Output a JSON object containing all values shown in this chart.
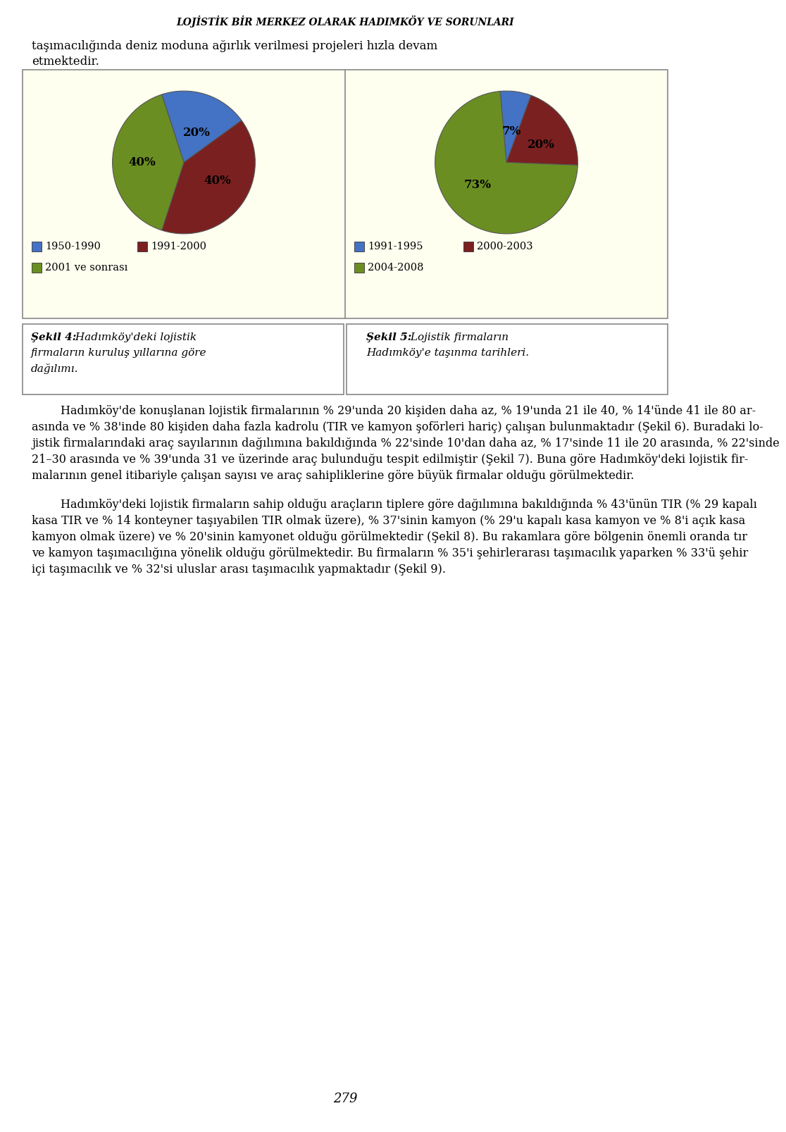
{
  "page_title": "LOJİSTİK BİR MERKEZ OLARAK HADIMKÖY VE SORUNLARI",
  "page_number": "279",
  "chart_bg": "#FFFFF0",
  "pie1": {
    "values": [
      20,
      40,
      40
    ],
    "pct_labels": [
      "20%",
      "40%",
      "40%"
    ],
    "colors": [
      "#4472C4",
      "#7B2020",
      "#6B8E23"
    ],
    "legend": [
      "1950-1990",
      "1991-2000",
      "2001 ve sonrası"
    ],
    "legend_colors": [
      "#4472C4",
      "#7B2020",
      "#6B8E23"
    ],
    "startangle": 108
  },
  "pie2": {
    "values": [
      7,
      20,
      73
    ],
    "pct_labels": [
      "7%",
      "20%",
      "73%"
    ],
    "colors": [
      "#4472C4",
      "#7B2020",
      "#6B8E23"
    ],
    "legend": [
      "1991-1995",
      "2000-2003",
      "2004-2008"
    ],
    "legend_colors": [
      "#4472C4",
      "#7B2020",
      "#6B8E23"
    ],
    "startangle": 95
  },
  "caption1_bold": "Şekil 4:",
  "caption1_rest": " Hadımköy’deki lojistik\nfirmaların kuruluş yıllarına göre\ndağılımı.",
  "caption2_bold": "Şekil 5:",
  "caption2_rest": " Lojistik firmaların\nHadımköy’e taşınma tarihleri.",
  "body1_lines": [
    "        Hadımköy’de konuşlanan lojistik firmalarının % 29’unda 20 kişiden daha az, % 19’unda 21 ile 40, % 14’ünde 41 ile 80 ar-",
    "asında ve % 38’inde 80 kişiden daha fazla kadrolu (TIR ve kamyon şoförleri hariç) çalışan bulunmaktadır (Şekil 6). Buradaki lo-",
    "jistik firmalarındaki araç sayılarının dağılımına bakıldığında % 22’sinde 10’dan daha az, % 17’sinde 11 ile 20 arasında, % 22’sinde",
    "21–30 arasında ve % 39’unda 31 ve üzerinde araç bulunduğu tespit edilmiştir (Şekil 7). Buna göre Hadımköy’deki lojistik fir-",
    "malarının genel itibariyle çalışan sayısı ve araç sahipliklerine göre büyük firmalar olduğu görülmektedir."
  ],
  "body2_lines": [
    "        Hadımköy’deki lojistik firmaların sahip olduğu araçların tiplere göre dağılımına bakıldığında % 43’ünün TİR (% 29 kapalı",
    "kasa TİR ve % 14 konteyner taşıyabilen TİR olmak üzere), % 37’sinin kamyon (% 29’u kapalı kasa kamyon ve % 8’i açık kasa",
    "kamyon olmak üzere) ve % 20’sinin kamyonet olduğu görülmektedir (Şekil 8). Bu rakamlara göre bölgenin önemli oranda tır",
    "ve kamyon taşımacılığına yönelik olduğu görülmektedir. Bu firmaların % 35’i şehirlerarası taşımacılık yaparken % 33’ü şehir",
    "içi taşımacılık ve % 32’si uluslar arası taşımacılık yapmaktadır (Şekil 9)."
  ]
}
